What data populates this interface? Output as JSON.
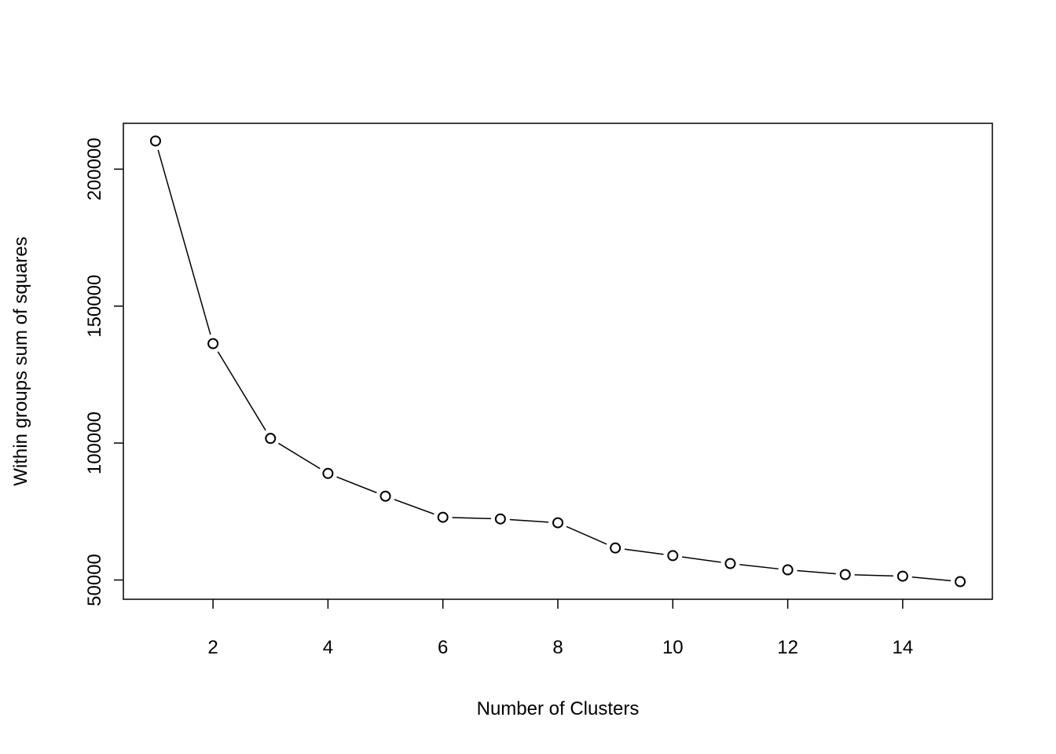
{
  "chart_data": {
    "type": "line",
    "x_label": "Number of Clusters",
    "y_label": "Within groups sum of squares",
    "x": [
      1,
      2,
      3,
      4,
      5,
      6,
      7,
      8,
      9,
      10,
      11,
      12,
      13,
      14,
      15
    ],
    "series": [
      {
        "color": "#000000",
        "values": [
          210300,
          136300,
          101700,
          88900,
          80600,
          72900,
          72300,
          70900,
          61700,
          58900,
          56000,
          53700,
          52000,
          51400,
          49400
        ]
      }
    ],
    "xlim": [
      0.44,
      15.56
    ],
    "ylim": [
      42964,
      216736
    ],
    "xticks": [
      2,
      4,
      6,
      8,
      10,
      12,
      14
    ],
    "yticks": [
      50000,
      100000,
      150000,
      200000
    ]
  }
}
